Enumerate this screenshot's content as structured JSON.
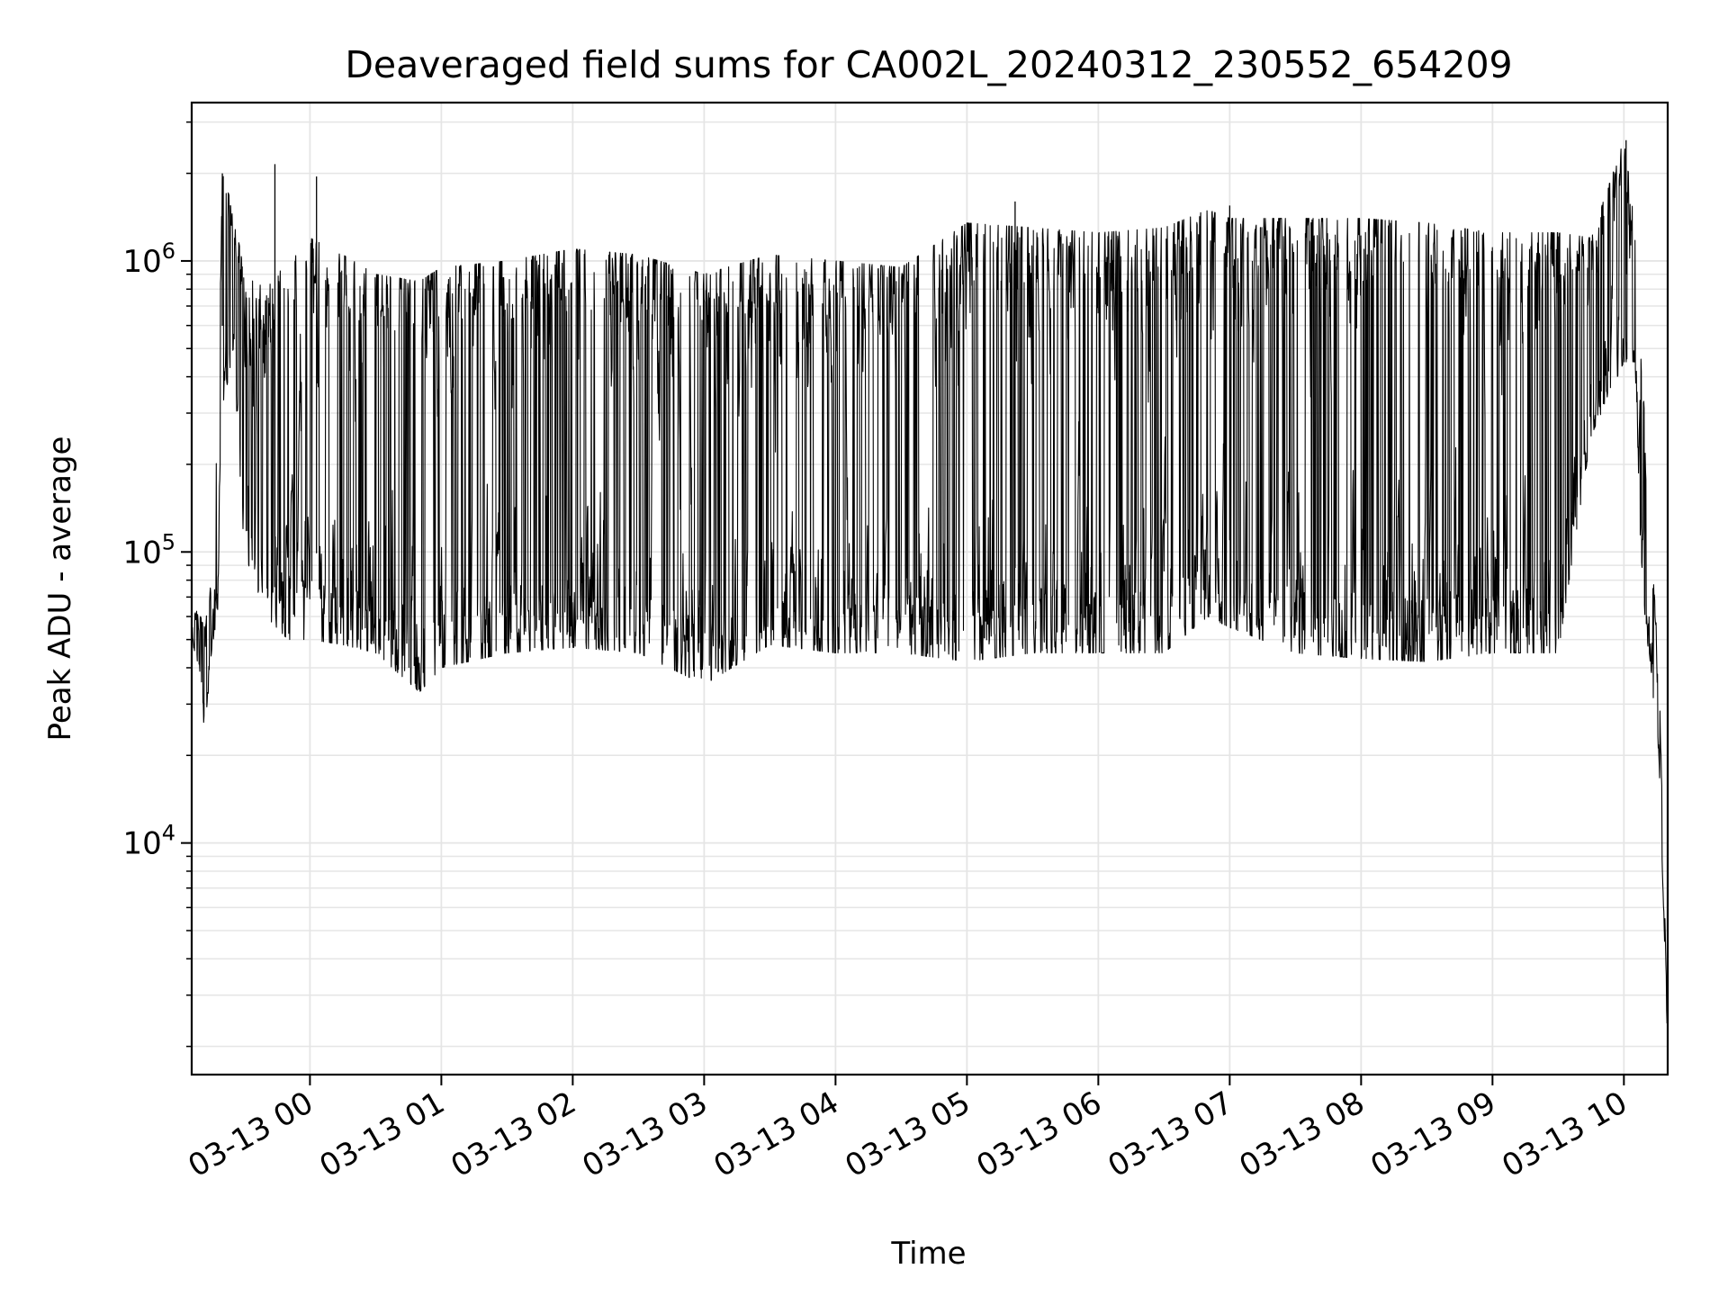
{
  "chart_data": {
    "type": "line",
    "title": "Deaveraged field sums for CA002L_20240312_230552_654209",
    "xlabel": "Time",
    "ylabel": "Peak ADU - average",
    "yscale": "log",
    "xlim": [
      "2024-03-12 23:06",
      "2024-03-13 10:20"
    ],
    "ylim": [
      1600,
      3500000
    ],
    "grid": true,
    "line_color": "#000000",
    "grid_color": "#e5e5e5",
    "x_ticks": [
      {
        "t": "2024-03-13 00:00",
        "label": "03-13 00"
      },
      {
        "t": "2024-03-13 01:00",
        "label": "03-13 01"
      },
      {
        "t": "2024-03-13 02:00",
        "label": "03-13 02"
      },
      {
        "t": "2024-03-13 03:00",
        "label": "03-13 03"
      },
      {
        "t": "2024-03-13 04:00",
        "label": "03-13 04"
      },
      {
        "t": "2024-03-13 05:00",
        "label": "03-13 05"
      },
      {
        "t": "2024-03-13 06:00",
        "label": "03-13 06"
      },
      {
        "t": "2024-03-13 07:00",
        "label": "03-13 07"
      },
      {
        "t": "2024-03-13 08:00",
        "label": "03-13 08"
      },
      {
        "t": "2024-03-13 09:00",
        "label": "03-13 09"
      },
      {
        "t": "2024-03-13 10:00",
        "label": "03-13 10"
      }
    ],
    "y_ticks": [
      {
        "value": 10000,
        "base": "10",
        "exp": "4"
      },
      {
        "value": 100000,
        "base": "10",
        "exp": "5"
      },
      {
        "value": 1000000,
        "base": "10",
        "exp": "6"
      }
    ],
    "envelope": {
      "description_units": "time, lower trace value, upper trace value",
      "points": [
        [
          "2024-03-12 23:06",
          50000,
          66000
        ],
        [
          "2024-03-12 23:10",
          38000,
          60000
        ],
        [
          "2024-03-12 23:12",
          22000,
          55000
        ],
        [
          "2024-03-12 23:15",
          45000,
          80000
        ],
        [
          "2024-03-12 23:18",
          60000,
          300000
        ],
        [
          "2024-03-12 23:20",
          300000,
          2000000
        ],
        [
          "2024-03-12 23:25",
          500000,
          1500000
        ],
        [
          "2024-03-12 23:30",
          100000,
          900000
        ],
        [
          "2024-03-12 23:40",
          60000,
          800000
        ],
        [
          "2024-03-12 23:50",
          50000,
          1000000
        ],
        [
          "2024-03-13 00:00",
          50000,
          1200000
        ],
        [
          "2024-03-13 00:15",
          48000,
          1050000
        ],
        [
          "2024-03-13 00:30",
          45000,
          900000
        ],
        [
          "2024-03-13 00:50",
          33000,
          850000
        ],
        [
          "2024-03-13 01:00",
          40000,
          950000
        ],
        [
          "2024-03-13 01:30",
          45000,
          1000000
        ],
        [
          "2024-03-13 02:00",
          47000,
          1100000
        ],
        [
          "2024-03-13 02:30",
          45000,
          1050000
        ],
        [
          "2024-03-13 03:00",
          35000,
          900000
        ],
        [
          "2024-03-13 03:30",
          48000,
          1050000
        ],
        [
          "2024-03-13 04:00",
          45000,
          1000000
        ],
        [
          "2024-03-13 04:30",
          45000,
          950000
        ],
        [
          "2024-03-13 05:00",
          42000,
          1350000
        ],
        [
          "2024-03-13 05:30",
          45000,
          1300000
        ],
        [
          "2024-03-13 06:00",
          45000,
          1250000
        ],
        [
          "2024-03-13 06:30",
          45000,
          1300000
        ],
        [
          "2024-03-13 06:50",
          60000,
          1500000
        ],
        [
          "2024-03-13 07:00",
          55000,
          1400000
        ],
        [
          "2024-03-13 07:30",
          45000,
          1400000
        ],
        [
          "2024-03-13 08:00",
          43000,
          1400000
        ],
        [
          "2024-03-13 08:30",
          42000,
          1350000
        ],
        [
          "2024-03-13 09:00",
          45000,
          1250000
        ],
        [
          "2024-03-13 09:30",
          45000,
          1250000
        ],
        [
          "2024-03-13 09:45",
          250000,
          1200000
        ],
        [
          "2024-03-13 10:00",
          450000,
          2600000
        ],
        [
          "2024-03-13 10:05",
          450000,
          1400000
        ],
        [
          "2024-03-13 10:08",
          80000,
          480000
        ],
        [
          "2024-03-13 10:12",
          40000,
          120000
        ],
        [
          "2024-03-13 10:16",
          20000,
          40000
        ],
        [
          "2024-03-13 10:20",
          2000,
          2200
        ]
      ]
    },
    "notable_peaks": [
      [
        "2024-03-12 23:20",
        2000000
      ],
      [
        "2024-03-12 23:44",
        2150000
      ],
      [
        "2024-03-13 00:03",
        1950000
      ],
      [
        "2024-03-13 05:22",
        1600000
      ],
      [
        "2024-03-13 07:00",
        1550000
      ],
      [
        "2024-03-13 10:01",
        2600000
      ]
    ]
  }
}
